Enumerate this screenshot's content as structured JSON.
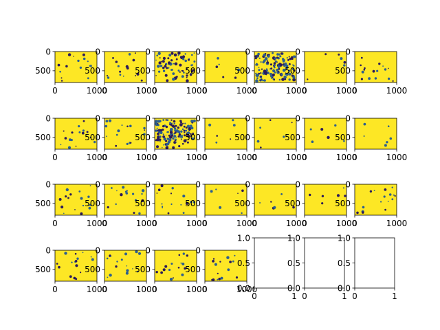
{
  "chart_data": {
    "type": "image_grid",
    "rows": 4,
    "cols": 7,
    "colors": {
      "background": "#fde725",
      "blobs": "#2d5f8e",
      "dark": "#2b1a5a",
      "figure_bg": "#ffffff",
      "spine": "#000000"
    },
    "panels": [
      {
        "row": 0,
        "col": 0,
        "xticks": [
          "0",
          "1000"
        ],
        "yticks": [
          "0",
          "500"
        ],
        "density": "sparse",
        "image": true
      },
      {
        "row": 0,
        "col": 1,
        "xticks": [
          "0",
          "1000"
        ],
        "yticks": [
          "0",
          "500"
        ],
        "density": "sparse",
        "image": true
      },
      {
        "row": 0,
        "col": 2,
        "xticks": [
          "0",
          "1000"
        ],
        "yticks": [
          "0",
          "500"
        ],
        "density": "dense",
        "image": true
      },
      {
        "row": 0,
        "col": 3,
        "xticks": [
          "0",
          "1000"
        ],
        "yticks": [
          "0",
          "500"
        ],
        "density": "very-sparse",
        "image": true
      },
      {
        "row": 0,
        "col": 4,
        "xticks": [
          "0",
          "1000"
        ],
        "yticks": [
          "0",
          "500"
        ],
        "density": "very-dense",
        "image": true
      },
      {
        "row": 0,
        "col": 5,
        "xticks": [
          "0",
          "1000"
        ],
        "yticks": [
          "0",
          "500"
        ],
        "density": "very-sparse",
        "image": true
      },
      {
        "row": 0,
        "col": 6,
        "xticks": [
          "0",
          "1000"
        ],
        "yticks": [
          "0",
          "500"
        ],
        "density": "sparse",
        "image": true
      },
      {
        "row": 1,
        "col": 0,
        "xticks": [
          "0",
          "1000"
        ],
        "yticks": [
          "0",
          "500"
        ],
        "density": "sparse",
        "image": true
      },
      {
        "row": 1,
        "col": 1,
        "xticks": [
          "0",
          "1000"
        ],
        "yticks": [
          "0",
          "500"
        ],
        "density": "sparse",
        "image": true
      },
      {
        "row": 1,
        "col": 2,
        "xticks": [
          "0",
          "1000"
        ],
        "yticks": [
          "0",
          "500"
        ],
        "density": "very-dense",
        "image": true
      },
      {
        "row": 1,
        "col": 3,
        "xticks": [
          "0",
          "1000"
        ],
        "yticks": [
          "0",
          "500"
        ],
        "density": "very-sparse",
        "image": true
      },
      {
        "row": 1,
        "col": 4,
        "xticks": [
          "0",
          "1000"
        ],
        "yticks": [
          "0",
          "500"
        ],
        "density": "very-sparse",
        "image": true
      },
      {
        "row": 1,
        "col": 5,
        "xticks": [
          "0",
          "1000"
        ],
        "yticks": [
          "0",
          "500"
        ],
        "density": "very-sparse",
        "image": true
      },
      {
        "row": 1,
        "col": 6,
        "xticks": [
          "0",
          "1000"
        ],
        "yticks": [
          "0",
          "500"
        ],
        "density": "very-sparse",
        "image": true
      },
      {
        "row": 2,
        "col": 0,
        "xticks": [
          "0",
          "1000"
        ],
        "yticks": [
          "0",
          "500"
        ],
        "density": "sparse",
        "image": true
      },
      {
        "row": 2,
        "col": 1,
        "xticks": [
          "0",
          "1000"
        ],
        "yticks": [
          "0",
          "500"
        ],
        "density": "sparse",
        "image": true
      },
      {
        "row": 2,
        "col": 2,
        "xticks": [
          "0",
          "1000"
        ],
        "yticks": [
          "0",
          "500"
        ],
        "density": "sparse",
        "image": true
      },
      {
        "row": 2,
        "col": 3,
        "xticks": [
          "0",
          "1000"
        ],
        "yticks": [
          "0",
          "500"
        ],
        "density": "very-sparse",
        "image": true
      },
      {
        "row": 2,
        "col": 4,
        "xticks": [
          "0",
          "1000"
        ],
        "yticks": [
          "0",
          "500"
        ],
        "density": "very-sparse",
        "image": true
      },
      {
        "row": 2,
        "col": 5,
        "xticks": [
          "0",
          "1000"
        ],
        "yticks": [
          "0",
          "500"
        ],
        "density": "very-sparse",
        "image": true
      },
      {
        "row": 2,
        "col": 6,
        "xticks": [
          "0",
          "1000"
        ],
        "yticks": [
          "0",
          "500"
        ],
        "density": "sparse",
        "image": true
      },
      {
        "row": 3,
        "col": 0,
        "xticks": [
          "0",
          "1000"
        ],
        "yticks": [
          "0",
          "500"
        ],
        "density": "sparse",
        "image": true
      },
      {
        "row": 3,
        "col": 1,
        "xticks": [
          "0",
          "1000"
        ],
        "yticks": [
          "0",
          "500"
        ],
        "density": "sparse",
        "image": true
      },
      {
        "row": 3,
        "col": 2,
        "xticks": [
          "0",
          "1000"
        ],
        "yticks": [
          "0",
          "500"
        ],
        "density": "sparse",
        "image": true
      },
      {
        "row": 3,
        "col": 3,
        "xticks": [
          "0",
          "1000"
        ],
        "yticks": [
          "0",
          "500"
        ],
        "density": "sparse",
        "image": true
      },
      {
        "row": 3,
        "col": 4,
        "xticks": [
          "0",
          "1"
        ],
        "yticks": [
          "0.0",
          "0.5",
          "1.0"
        ],
        "image": false
      },
      {
        "row": 3,
        "col": 5,
        "xticks": [
          "0",
          "1"
        ],
        "yticks": [
          "0.0",
          "0.5",
          "1.0"
        ],
        "image": false
      },
      {
        "row": 3,
        "col": 6,
        "xticks": [
          "0",
          "1"
        ],
        "yticks": [
          "0.0",
          "0.5",
          "1.0"
        ],
        "image": false
      }
    ]
  }
}
